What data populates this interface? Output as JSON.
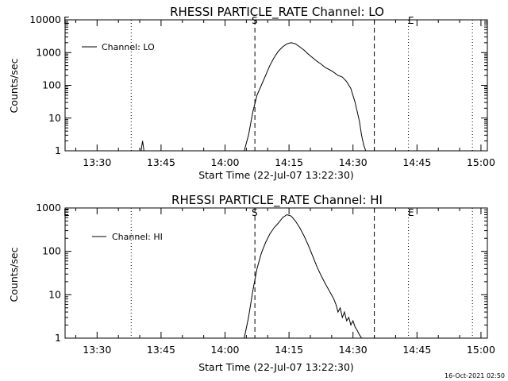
{
  "chart_data": [
    {
      "type": "line",
      "title": "RHESSI PARTICLE_RATE Channel: LO",
      "xlabel": "Start Time (22-Jul-07 13:22:30)",
      "ylabel": "Counts/sec",
      "yscale": "log",
      "ylim": [
        1,
        10000
      ],
      "ytick_labels": [
        "1",
        "10",
        "100",
        "1000",
        "10000"
      ],
      "xlim_minutes_of_day": [
        802.5,
        901.5
      ],
      "xtick_labels": [
        "13:30",
        "13:45",
        "14:00",
        "14:15",
        "14:30",
        "14:45",
        "15:00"
      ],
      "legend": {
        "position": "top-left",
        "entries": [
          "Channel: LO"
        ]
      },
      "markers": {
        "start_label": "S",
        "end_label": "E",
        "corner_label": "E"
      },
      "dashed_lines_time": [
        "14:07",
        "14:35"
      ],
      "dotted_lines_time": [
        "13:38",
        "14:43",
        "14:58"
      ],
      "series": [
        {
          "name": "Channel: LO",
          "x": [
            "13:39:30",
            "13:40:20",
            "13:40:40",
            "13:41:00",
            "13:41:40",
            "14:04:30",
            "14:05:30",
            "14:06:30",
            "14:07:30",
            "14:08:30",
            "14:09:30",
            "14:10:30",
            "14:11:30",
            "14:12:30",
            "14:13:30",
            "14:14:30",
            "14:15:30",
            "14:16:30",
            "14:17:30",
            "14:18:30",
            "14:19:30",
            "14:20:30",
            "14:21:30",
            "14:22:30",
            "14:23:30",
            "14:24:30",
            "14:25:30",
            "14:26:30",
            "14:27:30",
            "14:28:30",
            "14:29:30",
            "14:30:30",
            "14:31:30",
            "14:32:00",
            "14:32:30",
            "14:33:00"
          ],
          "y": [
            1,
            1,
            2,
            1,
            1,
            1,
            3,
            15,
            50,
            100,
            200,
            400,
            700,
            1100,
            1500,
            1850,
            2000,
            1850,
            1500,
            1200,
            900,
            700,
            550,
            450,
            350,
            300,
            250,
            200,
            180,
            130,
            80,
            30,
            8,
            3,
            1.5,
            1
          ]
        }
      ]
    },
    {
      "type": "line",
      "title": "RHESSI PARTICLE_RATE Channel: HI",
      "xlabel": "Start Time (22-Jul-07 13:22:30)",
      "ylabel": "Counts/sec",
      "yscale": "log",
      "ylim": [
        1,
        1000
      ],
      "ytick_labels": [
        "1",
        "10",
        "100",
        "1000"
      ],
      "xlim_minutes_of_day": [
        802.5,
        901.5
      ],
      "xtick_labels": [
        "13:30",
        "13:45",
        "14:00",
        "14:15",
        "14:30",
        "14:45",
        "15:00"
      ],
      "legend": {
        "position": "top-left",
        "entries": [
          "Channel: HI"
        ]
      },
      "markers": {
        "start_label": "S",
        "end_label": "E",
        "corner_label": "E"
      },
      "dashed_lines_time": [
        "14:07",
        "14:35"
      ],
      "dotted_lines_time": [
        "13:38",
        "14:43",
        "14:58"
      ],
      "series": [
        {
          "name": "Channel: HI",
          "x": [
            "14:04:30",
            "14:05:30",
            "14:06:30",
            "14:07:30",
            "14:08:30",
            "14:09:30",
            "14:10:30",
            "14:11:30",
            "14:12:30",
            "14:13:30",
            "14:14:30",
            "14:15:30",
            "14:16:30",
            "14:17:30",
            "14:18:30",
            "14:19:30",
            "14:20:30",
            "14:21:30",
            "14:22:30",
            "14:23:30",
            "14:24:30",
            "14:25:30",
            "14:26:00",
            "14:26:30",
            "14:27:00",
            "14:27:30",
            "14:28:00",
            "14:28:30",
            "14:29:00",
            "14:29:30",
            "14:30:00",
            "14:30:30",
            "14:31:00",
            "14:31:30",
            "14:32:00"
          ],
          "y": [
            1,
            3,
            12,
            40,
            90,
            160,
            250,
            350,
            450,
            600,
            700,
            650,
            500,
            350,
            230,
            140,
            80,
            45,
            28,
            18,
            12,
            8,
            6,
            4,
            5,
            3,
            4,
            2.5,
            3,
            2,
            2.5,
            1.8,
            1.5,
            1.2,
            1
          ]
        }
      ]
    }
  ],
  "footer": {
    "timestamp": "16-Oct-2021 02:50"
  }
}
